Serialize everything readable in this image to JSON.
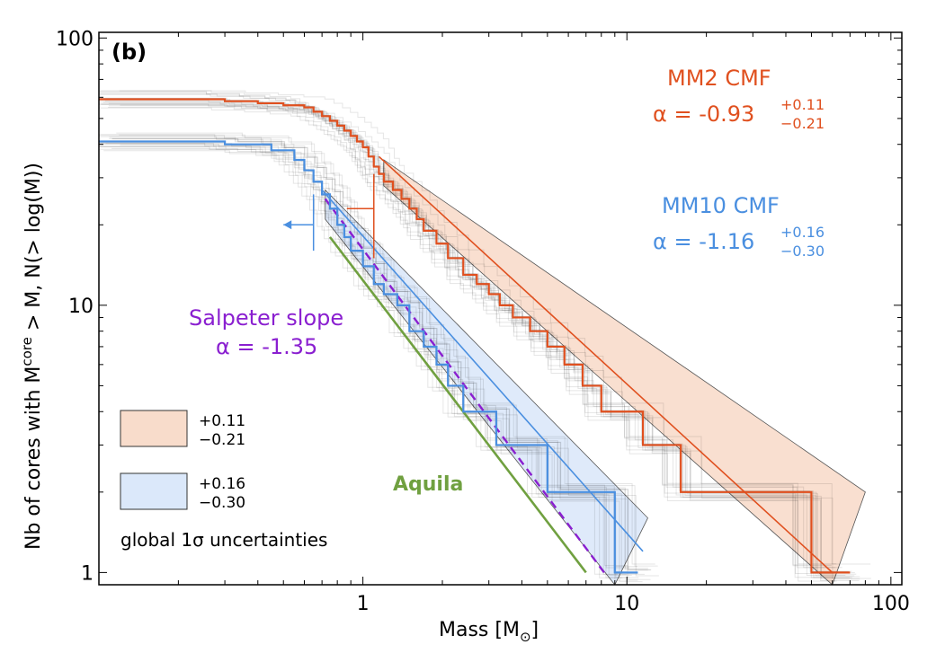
{
  "chart_data": {
    "type": "line",
    "panel_label": "(b)",
    "xlabel": "Mass [M",
    "xlabel_sub": "⊙",
    "xlabel_end": "]",
    "ylabel": "Nb of cores with M",
    "ylabel_sup": "core",
    "ylabel_end": " > M, N(> log(M))",
    "xscale": "log",
    "yscale": "log",
    "xlim": [
      0.1,
      110
    ],
    "ylim": [
      0.9,
      105
    ],
    "x_ticks": [
      1,
      10,
      100
    ],
    "x_tick_labels": [
      "1",
      "10",
      "100"
    ],
    "y_ticks": [
      1,
      10,
      100
    ],
    "y_tick_labels": [
      "1",
      "10",
      "100"
    ],
    "colors": {
      "mm2": "#e0501f",
      "mm10": "#4a8fe0",
      "salpeter": "#8a1fd0",
      "aquila": "#70a040",
      "mm2_band": "#f8dccb",
      "mm10_band": "#dbe8fa",
      "bootstrap": "#000000"
    },
    "series": [
      {
        "name": "MM2  CMF",
        "kind": "step",
        "x": [
          0.1,
          0.19,
          0.3,
          0.4,
          0.5,
          0.6,
          0.65,
          0.7,
          0.75,
          0.8,
          0.85,
          0.9,
          0.95,
          1.0,
          1.05,
          1.1,
          1.15,
          1.2,
          1.3,
          1.4,
          1.5,
          1.6,
          1.7,
          1.9,
          2.1,
          2.4,
          2.7,
          3.0,
          3.3,
          3.7,
          4.3,
          5.0,
          5.8,
          6.8,
          8.0,
          9.5,
          11.5,
          13.0,
          16.0,
          20.0,
          25.0,
          32.0,
          40.0,
          50.0,
          70.0
        ],
        "y": [
          59,
          59,
          58,
          57,
          56,
          55,
          53,
          51,
          49,
          47,
          45,
          43,
          41,
          39,
          36,
          33,
          31,
          29,
          27,
          25,
          23,
          21,
          19,
          17,
          15,
          13,
          12,
          11,
          10,
          9,
          8,
          7,
          6,
          5,
          4,
          4,
          3,
          3,
          2,
          2,
          2,
          2,
          2,
          1,
          1
        ]
      },
      {
        "name": "MM10  CMF",
        "kind": "step",
        "x": [
          0.1,
          0.15,
          0.3,
          0.45,
          0.55,
          0.6,
          0.65,
          0.7,
          0.75,
          0.8,
          0.85,
          0.9,
          1.0,
          1.1,
          1.2,
          1.35,
          1.5,
          1.7,
          1.9,
          2.1,
          2.4,
          2.8,
          3.2,
          3.7,
          4.3,
          5.0,
          6.0,
          8.0,
          9.0,
          11.0
        ],
        "y": [
          41,
          41,
          40,
          38,
          35,
          32,
          29,
          26,
          23,
          20,
          18,
          16,
          14,
          12,
          11,
          10,
          8,
          7,
          6,
          5,
          4,
          4,
          3,
          3,
          3,
          2,
          2,
          2,
          1,
          1
        ]
      },
      {
        "name": "MM2 power-law fit",
        "kind": "line",
        "x": [
          1.15,
          60
        ],
        "y": [
          36,
          1
        ]
      },
      {
        "name": "MM10 power-law fit",
        "kind": "line",
        "x": [
          0.7,
          11.5
        ],
        "y": [
          27,
          1.2
        ]
      },
      {
        "name": "Salpeter slope",
        "kind": "dashed",
        "x": [
          0.72,
          8.2
        ],
        "y": [
          25,
          1
        ]
      },
      {
        "name": "Aquila",
        "kind": "line",
        "x": [
          0.75,
          7.0
        ],
        "y": [
          18,
          1
        ]
      }
    ],
    "bands": [
      {
        "name": "mm2",
        "upper": {
          "x": [
            1.2,
            80
          ],
          "y": [
            35,
            2.0
          ]
        },
        "lower": {
          "x": [
            1.2,
            60
          ],
          "y": [
            28,
            0.9
          ]
        }
      },
      {
        "name": "mm10",
        "upper": {
          "x": [
            0.72,
            12
          ],
          "y": [
            27,
            1.6
          ]
        },
        "lower": {
          "x": [
            0.72,
            9
          ],
          "y": [
            21,
            0.9
          ]
        }
      }
    ],
    "completeness": {
      "mm2": {
        "x": 1.1,
        "y_low": 15,
        "y_high": 31,
        "y_bar": 23
      },
      "mm10": {
        "x": 0.65,
        "y_low": 16,
        "y_high": 26,
        "y_arrow": 20,
        "x_arrow_end": 0.5
      }
    },
    "annotations": {
      "mm2_label": "MM2  CMF",
      "mm2_alpha": "α = -0.93",
      "mm2_sup": "+0.11",
      "mm2_sub": "−0.21",
      "mm10_label": "MM10  CMF",
      "mm10_alpha": "α = -1.16",
      "mm10_sup": "+0.16",
      "mm10_sub": "−0.30",
      "salpeter_line1": "Salpeter slope",
      "salpeter_line2": "α = -1.35",
      "aquila": "Aquila"
    },
    "legend": {
      "items": [
        {
          "swatch": "mm2_band",
          "upper": "+0.11",
          "lower": "−0.21"
        },
        {
          "swatch": "mm10_band",
          "upper": "+0.16",
          "lower": "−0.30"
        }
      ],
      "caption": "global 1σ uncertainties"
    }
  }
}
